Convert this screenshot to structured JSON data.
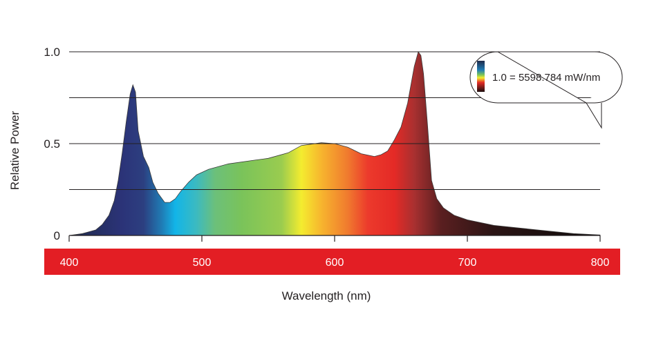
{
  "chart_data": {
    "type": "area",
    "xlabel": "Wavelength (nm)",
    "ylabel": "Relative Power",
    "xlim": [
      400,
      800
    ],
    "ylim": [
      0,
      1.0
    ],
    "x_ticks": [
      "400",
      "500",
      "600",
      "700",
      "800"
    ],
    "y_ticks": [
      "0",
      "0.5",
      "1.0"
    ],
    "grid": true,
    "legend_note": "1.0 = 5598.784 mW/nm",
    "legend_placement": "top-right",
    "x_band_color": "#e31e24",
    "x": [
      400,
      410,
      420,
      425,
      430,
      434,
      437,
      440,
      443,
      446,
      448,
      450,
      452,
      456,
      460,
      463,
      467,
      472,
      476,
      480,
      484,
      490,
      496,
      505,
      520,
      540,
      550,
      565,
      575,
      590,
      600,
      610,
      620,
      630,
      635,
      640,
      645,
      650,
      655,
      660,
      663,
      665,
      667,
      670,
      673,
      677,
      682,
      690,
      700,
      720,
      740,
      760,
      780,
      800
    ],
    "y": [
      0,
      0.01,
      0.03,
      0.06,
      0.11,
      0.19,
      0.3,
      0.45,
      0.62,
      0.77,
      0.82,
      0.78,
      0.57,
      0.43,
      0.37,
      0.29,
      0.23,
      0.18,
      0.18,
      0.2,
      0.24,
      0.29,
      0.33,
      0.36,
      0.39,
      0.41,
      0.42,
      0.45,
      0.49,
      0.505,
      0.5,
      0.48,
      0.445,
      0.43,
      0.44,
      0.46,
      0.52,
      0.59,
      0.72,
      0.92,
      1.0,
      0.98,
      0.88,
      0.6,
      0.3,
      0.2,
      0.15,
      0.11,
      0.085,
      0.055,
      0.04,
      0.025,
      0.01,
      0.003
    ]
  }
}
